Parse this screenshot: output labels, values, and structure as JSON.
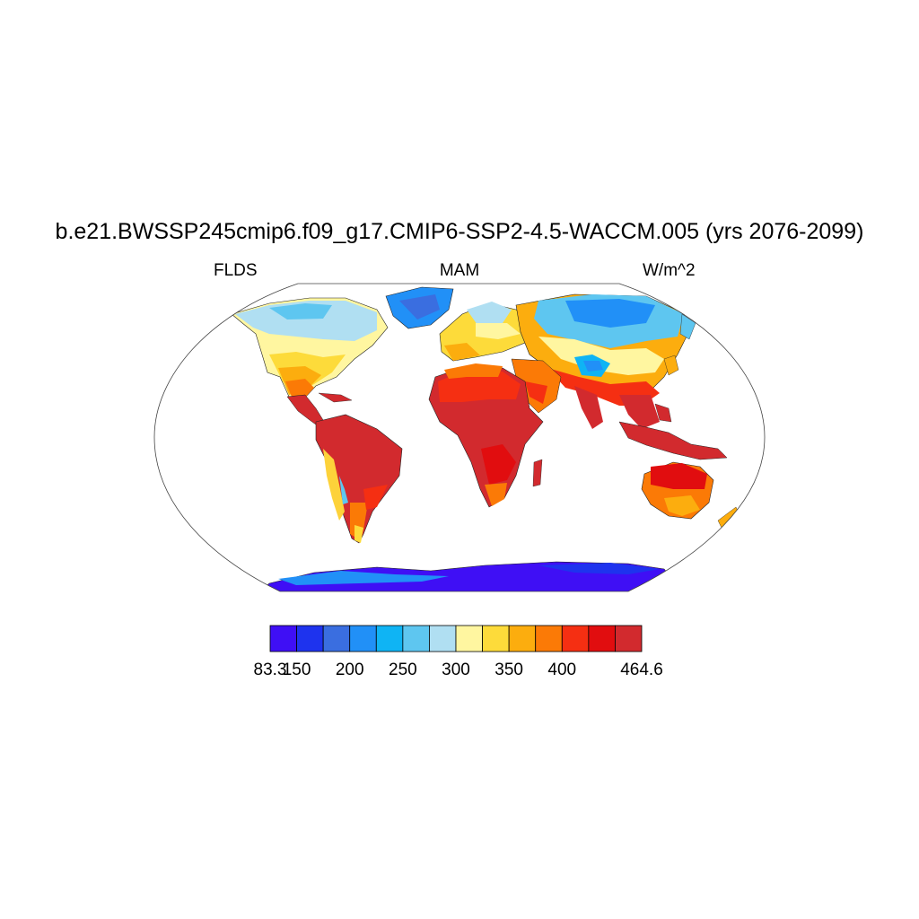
{
  "title": "b.e21.BWSSP245cmip6.f09_g17.CMIP6-SSP2-4.5-WACCM.005 (yrs 2076-2099)",
  "left_label": "FLDS",
  "center_label": "MAM",
  "right_label": "W/m^2",
  "colorbar": {
    "colors": [
      "#3f0ff5",
      "#1e33ee",
      "#3a6ee0",
      "#2190f7",
      "#0fb4f4",
      "#5ec6f0",
      "#b0dff2",
      "#fff6a0",
      "#fddb3a",
      "#fcad0e",
      "#fb7a06",
      "#f52f12",
      "#e10d0f",
      "#d22a2e"
    ],
    "tick_labels": [
      "83.3",
      "150",
      "200",
      "250",
      "300",
      "350",
      "400",
      "464.6"
    ]
  }
}
